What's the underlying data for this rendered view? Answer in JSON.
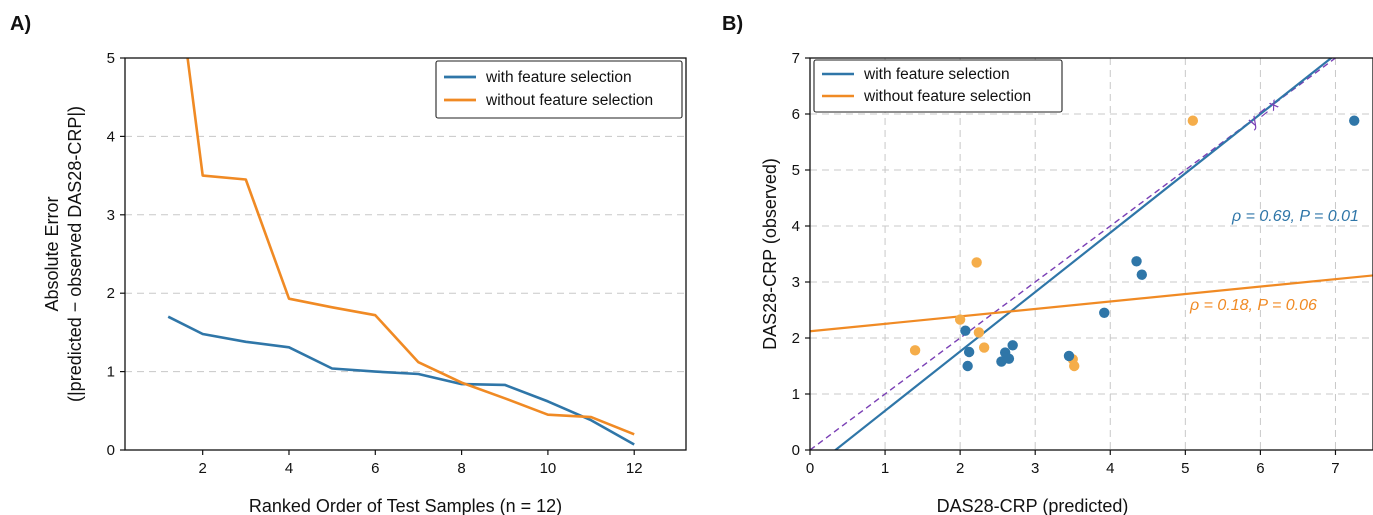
{
  "colors": {
    "with": "#2f76a8",
    "without": "#f08a24",
    "without_point": "#f5ad4a",
    "identity": "#7a3fb5",
    "grid": "#c8c8c8"
  },
  "chart_data": [
    {
      "panel": "A)",
      "type": "line",
      "xlabel": "Ranked Order of Test Samples (n = 12)",
      "ylabel_line1": "Absolute Error",
      "ylabel_line2": "(|predicted − observed DAS28-CRP|)",
      "xlim": [
        0.2,
        13.2
      ],
      "ylim": [
        0,
        5
      ],
      "xticks": [
        2,
        4,
        6,
        8,
        10,
        12
      ],
      "yticks": [
        0,
        1,
        2,
        3,
        4,
        5
      ],
      "grid": "horizontal dashed",
      "legend_position": "top-right",
      "series": [
        {
          "name": "with feature selection",
          "key": "with",
          "x": [
            1.2,
            2,
            3,
            4,
            5,
            6,
            7,
            8,
            9,
            10,
            11,
            12
          ],
          "y": [
            1.7,
            1.48,
            1.38,
            1.31,
            1.04,
            1.0,
            0.97,
            0.84,
            0.83,
            0.62,
            0.38,
            0.07
          ]
        },
        {
          "name": "without feature selection",
          "key": "without",
          "x": [
            1.65,
            2,
            3,
            4,
            5,
            6,
            7,
            8,
            9,
            10,
            11,
            12
          ],
          "y": [
            5.0,
            3.5,
            3.45,
            1.93,
            1.82,
            1.72,
            1.12,
            0.86,
            0.66,
            0.45,
            0.42,
            0.2
          ]
        }
      ]
    },
    {
      "panel": "B)",
      "type": "scatter",
      "xlabel": "DAS28-CRP (predicted)",
      "ylabel": "DAS28-CRP (observed)",
      "xlim": [
        0,
        7.5
      ],
      "ylim": [
        0,
        7
      ],
      "xticks": [
        0,
        1,
        2,
        3,
        4,
        5,
        6,
        7
      ],
      "yticks": [
        0,
        1,
        2,
        3,
        4,
        5,
        6,
        7
      ],
      "grid": "both dashed",
      "legend_position": "top-left",
      "identity_label": "y = x",
      "series": [
        {
          "name": "with feature selection",
          "key": "with",
          "points": [
            [
              2.07,
              2.13
            ],
            [
              2.12,
              1.75
            ],
            [
              2.1,
              1.5
            ],
            [
              2.55,
              1.58
            ],
            [
              2.6,
              1.74
            ],
            [
              2.65,
              1.63
            ],
            [
              2.7,
              1.87
            ],
            [
              3.45,
              1.68
            ],
            [
              3.92,
              2.45
            ],
            [
              4.35,
              3.37
            ],
            [
              4.42,
              3.13
            ],
            [
              7.25,
              5.88
            ]
          ],
          "fit": {
            "slope": 1.06,
            "intercept": -0.36
          },
          "annotation": "ρ = 0.69, P = 0.01"
        },
        {
          "name": "without feature selection",
          "key": "without",
          "points": [
            [
              1.4,
              1.78
            ],
            [
              2.0,
              2.33
            ],
            [
              2.22,
              3.35
            ],
            [
              2.25,
              2.1
            ],
            [
              2.32,
              1.83
            ],
            [
              3.5,
              1.62
            ],
            [
              3.52,
              1.5
            ],
            [
              5.1,
              5.88
            ]
          ],
          "fit": {
            "slope": 0.133,
            "intercept": 2.12
          },
          "annotation": "ρ = 0.18, P = 0.06"
        }
      ]
    }
  ]
}
